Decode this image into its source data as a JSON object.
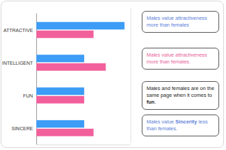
{
  "chart_data": {
    "type": "bar",
    "orientation": "horizontal",
    "categories": [
      "ATTRACTIVE",
      "INTELLIGENT",
      "FUN",
      "SINCERE"
    ],
    "series": [
      {
        "color": "#3d9cf5",
        "values": [
          9.4,
          5.1,
          5.1,
          5.1
        ]
      },
      {
        "color": "#f2609c",
        "values": [
          6.1,
          7.4,
          5.1,
          6.1
        ]
      }
    ],
    "xlim": [
      0,
      10
    ],
    "xticks": [],
    "grid": false,
    "tick_labels": "y",
    "annotations": [
      {
        "text_parts": [
          "Males value attractiveness more than females"
        ],
        "color": "#5b80d8"
      },
      {
        "text_parts": [
          "Males value attractiveness more than females."
        ],
        "color": "#e8609a"
      },
      {
        "text_parts": [
          "Males and females are on the same page when it comes to ",
          "fun",
          "."
        ],
        "color": "#222222"
      },
      {
        "text_parts": [
          "Males value ",
          "Sincerity",
          " less than females."
        ],
        "color": "#5b80d8"
      }
    ]
  }
}
